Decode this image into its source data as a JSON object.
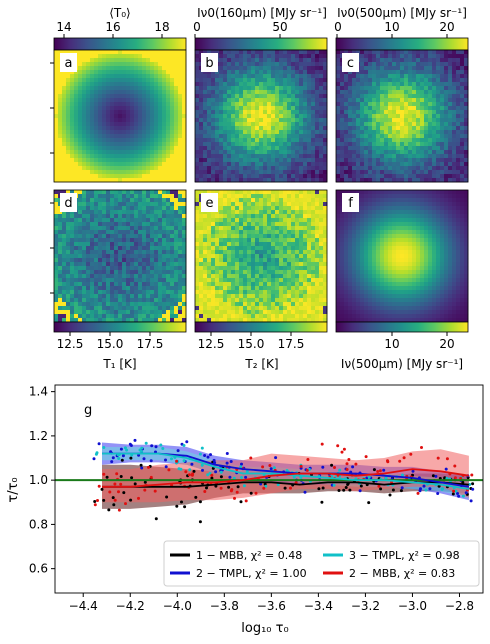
{
  "panels": {
    "a": {
      "letter": "a",
      "colorbar_label": "⟨T₀⟩",
      "colorbar_ticks": [
        "14",
        "16",
        "18"
      ],
      "colorbar_tick_values": [
        14,
        16,
        18
      ],
      "colorbar_range": [
        13.3,
        18.7
      ],
      "pattern": "ring"
    },
    "b": {
      "letter": "b",
      "colorbar_label": "Iν0(160μm) [MJy sr⁻¹]",
      "colorbar_ticks": [
        "0",
        "50"
      ],
      "colorbar_tick_values": [
        0,
        50
      ],
      "colorbar_range": [
        0,
        78
      ],
      "pattern": "blob_noisy"
    },
    "c": {
      "letter": "c",
      "colorbar_label": "Iν0(500μm) [MJy sr⁻¹]",
      "colorbar_ticks": [
        "0",
        "10",
        "20"
      ],
      "colorbar_tick_values": [
        0,
        10,
        20
      ],
      "colorbar_range": [
        0,
        23.5
      ],
      "pattern": "blob_noisy"
    },
    "d": {
      "letter": "d",
      "colorbar_label": "T₁ [K]",
      "colorbar_ticks": [
        "12.5",
        "15.0",
        "17.5"
      ],
      "colorbar_tick_values": [
        12.5,
        15.0,
        17.5
      ],
      "colorbar_range": [
        10.8,
        19.2
      ],
      "pattern": "noisy_temp"
    },
    "e": {
      "letter": "e",
      "colorbar_label": "T₂ [K]",
      "colorbar_ticks": [
        "12.5",
        "15.0",
        "17.5"
      ],
      "colorbar_tick_values": [
        12.5,
        15.0,
        17.5
      ],
      "colorbar_range": [
        10.8,
        19.2
      ],
      "pattern": "noisy_temp_hot"
    },
    "f": {
      "letter": "f",
      "colorbar_label": "Iν(500μm) [MJy sr⁻¹]",
      "colorbar_ticks": [
        "10",
        "20"
      ],
      "colorbar_tick_values": [
        10,
        20
      ],
      "colorbar_range": [
        0,
        23.5
      ],
      "pattern": "blob_smooth"
    }
  },
  "colormap": "viridis",
  "chart_data": {
    "type": "line",
    "panel_letter": "g",
    "xlabel": "log₁₀ τ₀",
    "ylabel": "τ/τ₀",
    "xlim": [
      -4.52,
      -2.7
    ],
    "ylim": [
      0.49,
      1.43
    ],
    "xticks": [
      -4.4,
      -4.2,
      -4.0,
      -3.8,
      -3.6,
      -3.4,
      -3.2,
      -3.0,
      -2.8
    ],
    "xtick_labels": [
      "−4.4",
      "−4.2",
      "−4.0",
      "−3.8",
      "−3.6",
      "−3.4",
      "−3.2",
      "−3.0",
      "−2.8"
    ],
    "yticks": [
      0.6,
      0.8,
      1.0,
      1.2,
      1.4
    ],
    "ytick_labels": [
      "0.6",
      "0.8",
      "1.0",
      "1.2",
      "1.4"
    ],
    "reference_line": {
      "y": 1.0,
      "color": "#1a7a1a"
    },
    "legend_position": "lower-right",
    "series": [
      {
        "name": "1 − MBB, χ² = 0.48",
        "color": "#000000",
        "band_color": "#5a1a1a",
        "x": [
          -4.32,
          -4.2,
          -4.08,
          -3.96,
          -3.84,
          -3.72,
          -3.6,
          -3.48,
          -3.36,
          -3.24,
          -3.12,
          -3.0,
          -2.88,
          -2.76
        ],
        "y": [
          0.97,
          0.97,
          0.97,
          0.97,
          0.98,
          0.99,
          0.99,
          0.98,
          0.99,
          0.99,
          0.98,
          0.99,
          0.99,
          0.98
        ],
        "lo": [
          0.87,
          0.87,
          0.88,
          0.89,
          0.92,
          0.94,
          0.94,
          0.94,
          0.95,
          0.95,
          0.94,
          0.95,
          0.95,
          0.94
        ],
        "hi": [
          1.07,
          1.07,
          1.06,
          1.05,
          1.04,
          1.04,
          1.04,
          1.03,
          1.03,
          1.03,
          1.02,
          1.03,
          1.03,
          1.02
        ]
      },
      {
        "name": "2 − TMPL, χ² = 1.00",
        "color": "#1010d0",
        "band_color": "#3a3af0",
        "x": [
          -4.32,
          -4.2,
          -4.08,
          -3.96,
          -3.84,
          -3.72,
          -3.6,
          -3.48,
          -3.36,
          -3.24,
          -3.12,
          -3.0,
          -2.88,
          -2.76
        ],
        "y": [
          1.12,
          1.12,
          1.12,
          1.11,
          1.07,
          1.05,
          1.04,
          1.03,
          1.03,
          1.03,
          1.02,
          1.01,
          0.99,
          0.97
        ],
        "lo": [
          1.07,
          1.08,
          1.08,
          1.07,
          1.03,
          1.0,
          0.99,
          0.98,
          0.98,
          0.98,
          0.97,
          0.96,
          0.94,
          0.91
        ],
        "hi": [
          1.17,
          1.16,
          1.16,
          1.15,
          1.11,
          1.09,
          1.08,
          1.07,
          1.07,
          1.07,
          1.06,
          1.06,
          1.04,
          1.02
        ]
      },
      {
        "name": "3 − TMPL, χ² = 0.98",
        "color": "#10c0c8",
        "band_color": "#6ad8e0",
        "x": [
          -4.32,
          -4.2,
          -4.08,
          -3.96,
          -3.84,
          -3.72,
          -3.6,
          -3.48,
          -3.36,
          -3.24,
          -3.12,
          -3.0,
          -2.88,
          -2.76
        ],
        "y": [
          1.12,
          1.12,
          1.12,
          1.1,
          1.06,
          1.03,
          1.03,
          1.02,
          1.01,
          1.0,
          1.0,
          0.99,
          0.98,
          0.96
        ],
        "lo": [
          1.09,
          1.09,
          1.09,
          1.07,
          1.03,
          1.0,
          1.0,
          0.99,
          0.98,
          0.97,
          0.97,
          0.96,
          0.95,
          0.92
        ],
        "hi": [
          1.15,
          1.15,
          1.15,
          1.13,
          1.09,
          1.06,
          1.06,
          1.05,
          1.04,
          1.03,
          1.03,
          1.02,
          1.01,
          1.0
        ]
      },
      {
        "name": "2 − MBB, χ² = 0.83",
        "color": "#e01010",
        "band_color": "#f06060",
        "x": [
          -4.32,
          -4.2,
          -4.08,
          -3.96,
          -3.84,
          -3.72,
          -3.6,
          -3.48,
          -3.36,
          -3.24,
          -3.12,
          -3.0,
          -2.88,
          -2.76
        ],
        "y": [
          0.97,
          0.97,
          0.98,
          0.99,
          0.99,
          1.0,
          1.02,
          1.03,
          1.03,
          1.02,
          1.03,
          1.05,
          1.04,
          1.02
        ],
        "lo": [
          0.9,
          0.9,
          0.9,
          0.91,
          0.91,
          0.92,
          0.94,
          0.96,
          0.96,
          0.95,
          0.96,
          0.97,
          0.97,
          0.92
        ],
        "hi": [
          1.05,
          1.05,
          1.07,
          1.08,
          1.09,
          1.09,
          1.12,
          1.11,
          1.1,
          1.09,
          1.1,
          1.13,
          1.14,
          1.11
        ]
      }
    ],
    "scatter_extent": {
      "x": [
        -4.36,
        -2.74
      ],
      "y": [
        0.8,
        1.21
      ]
    }
  }
}
